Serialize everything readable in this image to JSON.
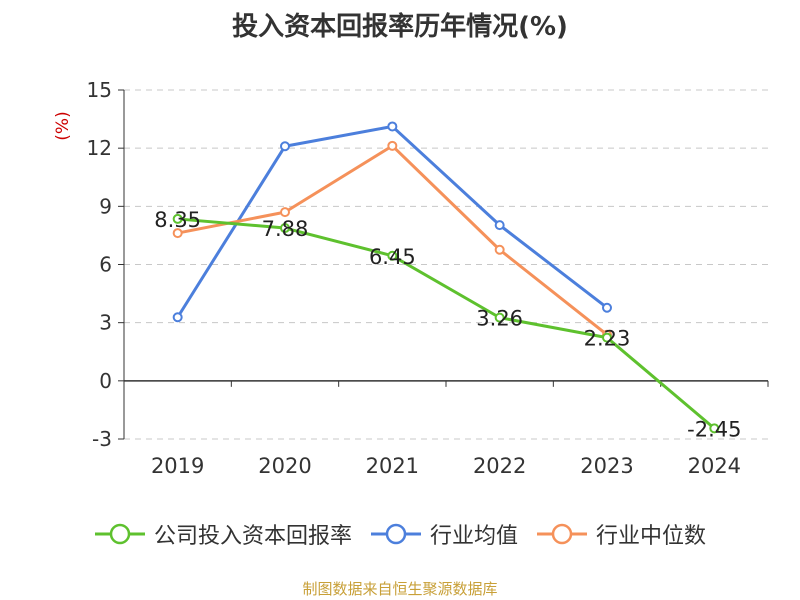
{
  "chart_data": {
    "type": "line",
    "title": "投入资本回报率历年情况(%)",
    "ylabel": "(%)",
    "xlabel": "",
    "categories": [
      "2019",
      "2020",
      "2021",
      "2022",
      "2023",
      "2024"
    ],
    "yticks": [
      -3,
      0,
      3,
      6,
      9,
      12,
      15
    ],
    "ylim": [
      -3,
      15
    ],
    "grid": "horizontal-dashed",
    "legend_position": "bottom",
    "series": [
      {
        "name": "公司投入资本回报率",
        "color": "#5ec12e",
        "values": [
          8.35,
          7.88,
          6.45,
          3.26,
          2.23,
          -2.45
        ],
        "labels": [
          "8.35",
          "7.88",
          "6.45",
          "3.26",
          "2.23",
          "-2.45"
        ]
      },
      {
        "name": "行业均值",
        "color": "#4c7fdc",
        "values": [
          3.28,
          12.1,
          13.12,
          8.03,
          3.77,
          null
        ]
      },
      {
        "name": "行业中位数",
        "color": "#f5915a",
        "values": [
          7.62,
          8.7,
          12.12,
          6.76,
          2.38,
          null
        ]
      }
    ]
  },
  "source": "制图数据来自恒生聚源数据库"
}
